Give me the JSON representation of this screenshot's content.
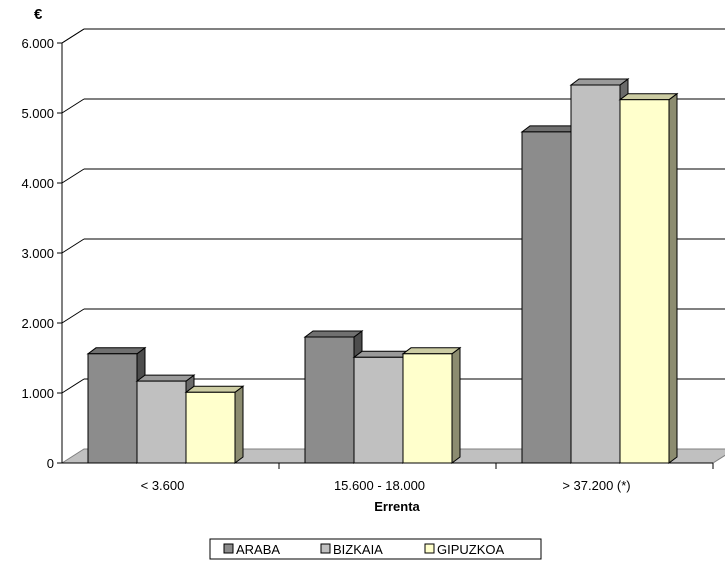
{
  "chart_data": {
    "type": "bar",
    "unit_label": "€",
    "xlabel": "Errenta",
    "ylabel": "",
    "categories": [
      "< 3.600",
      "15.600 - 18.000",
      "> 37.200 (*)"
    ],
    "series": [
      {
        "name": "ARABA",
        "values": [
          1560,
          1800,
          4730
        ],
        "color": "#8c8c8c"
      },
      {
        "name": "BIZKAIA",
        "values": [
          1170,
          1510,
          5400
        ],
        "color": "#c0c0c0"
      },
      {
        "name": "GIPUZKOA",
        "values": [
          1010,
          1560,
          5190
        ],
        "color": "#ffffcc"
      }
    ],
    "yticks": [
      {
        "value": 0,
        "label": "0"
      },
      {
        "value": 1000,
        "label": "1.000"
      },
      {
        "value": 2000,
        "label": "2.000"
      },
      {
        "value": 3000,
        "label": "3.000"
      },
      {
        "value": 4000,
        "label": "4.000"
      },
      {
        "value": 5000,
        "label": "5.000"
      },
      {
        "value": 6000,
        "label": "6.000"
      }
    ],
    "ylim": [
      0,
      6000
    ],
    "grid": true,
    "legend_position": "bottom"
  }
}
